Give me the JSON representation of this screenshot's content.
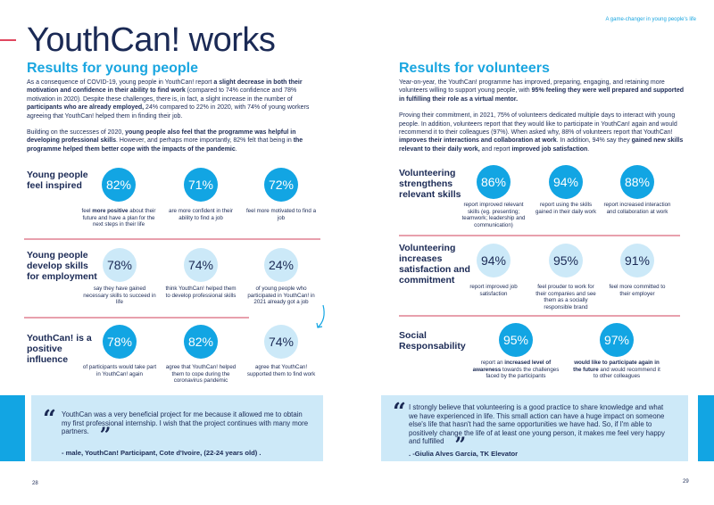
{
  "header": {
    "title": "YouthCan! works",
    "tagline": "A game-changer in young people's life"
  },
  "left": {
    "heading": "Results for young people",
    "paragraphs": [
      [
        {
          "t": "As a consequence of COVID-19, young people in YouthCan! report "
        },
        {
          "t": "a slight decrease in both their motivation and confidence in their ability to find work",
          "b": true
        },
        {
          "t": " (compared to 74% confidence and 78% motivation in 2020). Despite these challenges, there is, in fact, a slight increase in the number of "
        },
        {
          "t": "participants who are already employed,",
          "b": true
        },
        {
          "t": " 24% compared to 22% in 2020, with 74% of young workers agreeing that YouthCan! helped them in finding their job."
        }
      ],
      [
        {
          "t": "Building on the successes of 2020, "
        },
        {
          "t": "young people also feel that the programme was helpful in developing professional skills",
          "b": true
        },
        {
          "t": ". However, and perhaps more importantly, 82% felt that being in "
        },
        {
          "t": "the programme helped them better cope with the impacts of the pandemic",
          "b": true
        },
        {
          "t": "."
        }
      ]
    ],
    "sections": [
      {
        "title": "Young people feel inspired",
        "stats": [
          {
            "value": "82%",
            "style": "dark",
            "desc": [
              {
                "t": "feel "
              },
              {
                "t": "more positive",
                "b": true
              },
              {
                "t": " about their future and have a plan for the next steps in their life"
              }
            ]
          },
          {
            "value": "71%",
            "style": "dark",
            "desc": [
              {
                "t": "are more confident in their ability to find a job"
              }
            ]
          },
          {
            "value": "72%",
            "style": "dark",
            "desc": [
              {
                "t": "feel more motivated to find a job"
              }
            ]
          }
        ]
      },
      {
        "title": "Young people develop skills for employment",
        "stats": [
          {
            "value": "78%",
            "style": "light",
            "desc": [
              {
                "t": "say they have gained necessary skills to succeed in life"
              }
            ]
          },
          {
            "value": "74%",
            "style": "light",
            "desc": [
              {
                "t": "think YouthCan! helped them to develop professional skills"
              }
            ]
          },
          {
            "value": "24%",
            "style": "light",
            "desc": [
              {
                "t": "of young people who participated in YouthCan! in 2021 already got a job"
              }
            ]
          }
        ]
      },
      {
        "title": "YouthCan! is a positive influence",
        "stats": [
          {
            "value": "78%",
            "style": "dark",
            "desc": [
              {
                "t": "of participants would take part in YouthCan! again"
              }
            ]
          },
          {
            "value": "82%",
            "style": "dark",
            "desc": [
              {
                "t": "agree that YouthCan! helped them to cope during the coronavirus pandemic"
              }
            ]
          },
          {
            "value": "74%",
            "style": "light",
            "desc": [
              {
                "t": "agree that YouthCan! supported them to find work"
              }
            ]
          }
        ]
      }
    ],
    "quote": {
      "open": "“",
      "close": "”",
      "text": "YouthCan was a very beneficial project for me because it allowed me to obtain my first professional internship. I wish that the project continues with many more partners.",
      "author": "- male, YouthCan! Participant, Cote d'Ivoire, (22-24 years old) ."
    },
    "page_number": "28"
  },
  "right": {
    "heading": "Results for volunteers",
    "paragraphs": [
      [
        {
          "t": "Year-on-year, the YouthCan! programme has improved, preparing, engaging, and retaining more volunteers willing to support young people, with "
        },
        {
          "t": "95% feeling they were well prepared and supported in fulfilling their role as a virtual mentor.",
          "b": true
        }
      ],
      [
        {
          "t": "Proving their commitment, in 2021, 75% of volunteers dedicated multiple days to interact with young people. In addition, volunteers report that they would like to participate in YouthCan! again and would recommend it to their colleagues (97%). When asked why, 88% of volunteers report that YouthCan! "
        },
        {
          "t": "improves their interactions and collaboration at work",
          "b": true
        },
        {
          "t": ". In addition, 94% say they "
        },
        {
          "t": "gained new skills relevant to their daily work,",
          "b": true
        },
        {
          "t": " and report "
        },
        {
          "t": "improved job satisfaction",
          "b": true
        },
        {
          "t": "."
        }
      ]
    ],
    "sections": [
      {
        "title": "Volunteering strengthens relevant skills",
        "stats": [
          {
            "value": "86%",
            "style": "dark",
            "desc": [
              {
                "t": "report improved relevant skills (eg. presenting; teamwork; leadership and communication)"
              }
            ]
          },
          {
            "value": "94%",
            "style": "dark",
            "desc": [
              {
                "t": "report using the skills gained in their daily work"
              }
            ]
          },
          {
            "value": "88%",
            "style": "dark",
            "desc": [
              {
                "t": "report increased interaction and collaboration at work"
              }
            ]
          }
        ]
      },
      {
        "title": "Volunteering increases satisfaction and commitment",
        "stats": [
          {
            "value": "94%",
            "style": "light",
            "desc": [
              {
                "t": "report improved job satisfaction"
              }
            ]
          },
          {
            "value": "95%",
            "style": "light",
            "desc": [
              {
                "t": "feel prouder to work for their companies and see them as a socially responsible brand"
              }
            ]
          },
          {
            "value": "91%",
            "style": "light",
            "desc": [
              {
                "t": "feel more committed to their employer"
              }
            ]
          }
        ]
      },
      {
        "title": "Social Responsability",
        "stats": [
          {
            "value": "95%",
            "style": "dark",
            "desc": [
              {
                "t": "report an "
              },
              {
                "t": "increased level of awareness",
                "b": true
              },
              {
                "t": " towards the challenges faced by the participants"
              }
            ]
          },
          {
            "value": "97%",
            "style": "dark",
            "desc": [
              {
                "t": "would like to participate again in the future",
                "b": true
              },
              {
                "t": " and would recommend it to other colleagues"
              }
            ]
          }
        ]
      }
    ],
    "quote": {
      "open": "“",
      "close": "”",
      "text": "I strongly believe that volunteering is a good practice to share knowledge and what we have experienced in life. This small action can have a huge impact on someone else's life that hasn't had the same opportunities we have had. So, if I'm able to positively change the life of at least one young person, it makes me feel very happy and fulfilled",
      "author": ". -Giulia Alves Garcia, TK Elevator"
    },
    "page_number": "29"
  },
  "colors": {
    "accent": "#12a5e3",
    "light": "#cce9f8",
    "navy": "#1b2a55",
    "rule": "#e8a0ad"
  }
}
